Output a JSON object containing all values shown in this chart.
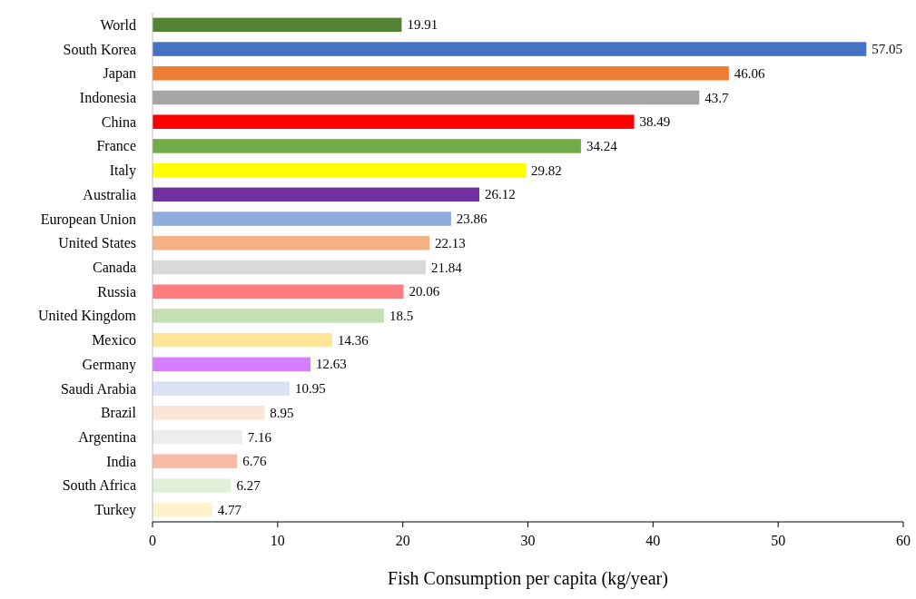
{
  "chart_data": {
    "type": "bar",
    "orientation": "horizontal",
    "xlabel": "Fish Consumption per capita (kg/year)",
    "categories": [
      "World",
      "South Korea",
      "Japan",
      "Indonesia",
      "China",
      "France",
      "Italy",
      "Australia",
      "European Union",
      "United States",
      "Canada",
      "Russia",
      "United Kingdom",
      "Mexico",
      "Germany",
      "Saudi Arabia",
      "Brazil",
      "Argentina",
      "India",
      "South Africa",
      "Turkey"
    ],
    "values": [
      19.91,
      57.05,
      46.06,
      43.7,
      38.49,
      34.24,
      29.82,
      26.12,
      23.86,
      22.13,
      21.84,
      20.06,
      18.5,
      14.36,
      12.63,
      10.95,
      8.95,
      7.16,
      6.76,
      6.27,
      4.77
    ],
    "colors": [
      "#548235",
      "#4472c4",
      "#ed7d31",
      "#a5a5a5",
      "#ff0000",
      "#70ad47",
      "#ffff00",
      "#7030a0",
      "#8faadc",
      "#f4b183",
      "#d9d9d9",
      "#ff7c80",
      "#c5e0b4",
      "#ffe699",
      "#d47fff",
      "#dae3f3",
      "#fbe5d6",
      "#ededed",
      "#f8bba8",
      "#e2f0d9",
      "#fff2cc"
    ],
    "xlim": [
      0,
      60
    ],
    "xticks": [
      0,
      10,
      20,
      30,
      40,
      50,
      60
    ],
    "data_labels": true,
    "grid": false
  }
}
